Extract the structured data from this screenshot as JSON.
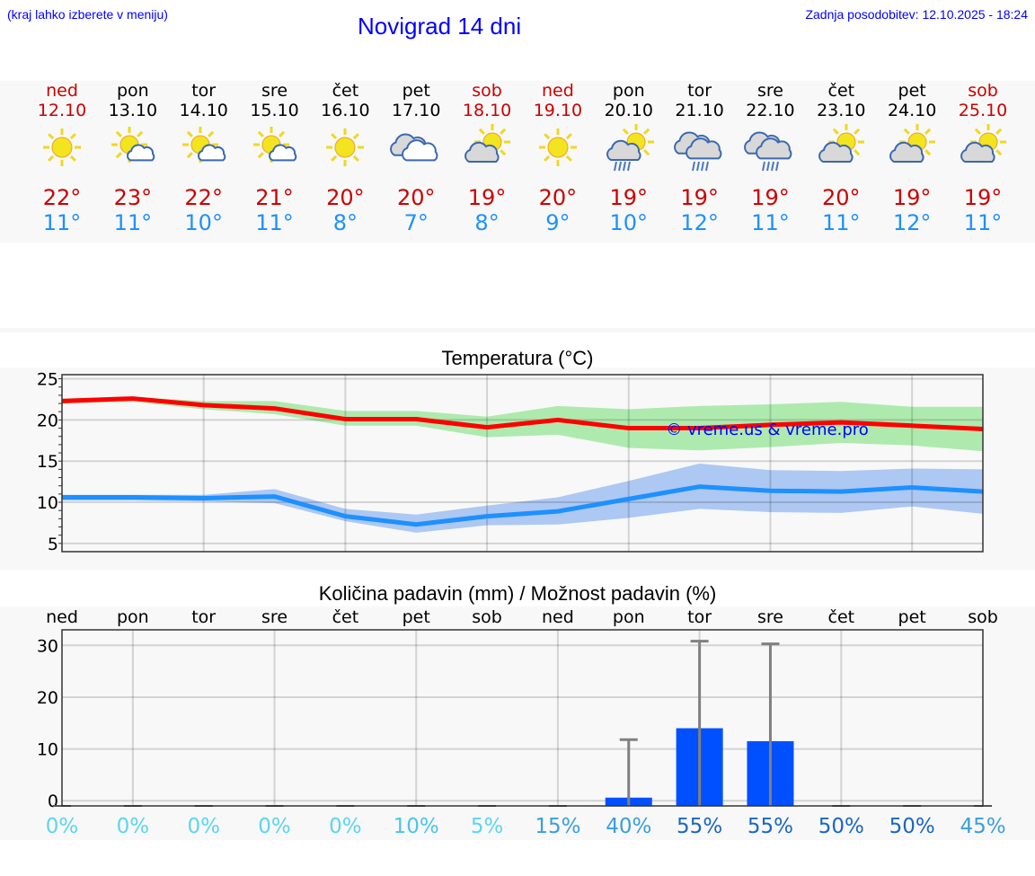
{
  "header": {
    "hint": "(kraj lahko izberete v meniju)",
    "title": "Novigrad 14 dni",
    "updated": "Zadnja posodobitev: 12.10.2025 - 18:24"
  },
  "days": [
    {
      "name": "ned",
      "date": "12.10",
      "weekend": true,
      "icon": "sun",
      "max": "22°",
      "min": "11°"
    },
    {
      "name": "pon",
      "date": "13.10",
      "weekend": false,
      "icon": "sun-small-cloud",
      "max": "23°",
      "min": "11°"
    },
    {
      "name": "tor",
      "date": "14.10",
      "weekend": false,
      "icon": "sun-small-cloud",
      "max": "22°",
      "min": "10°"
    },
    {
      "name": "sre",
      "date": "15.10",
      "weekend": false,
      "icon": "sun-small-cloud",
      "max": "21°",
      "min": "11°"
    },
    {
      "name": "čet",
      "date": "16.10",
      "weekend": false,
      "icon": "sun",
      "max": "20°",
      "min": "8°"
    },
    {
      "name": "pet",
      "date": "17.10",
      "weekend": false,
      "icon": "cloudy",
      "max": "20°",
      "min": "7°"
    },
    {
      "name": "sob",
      "date": "18.10",
      "weekend": true,
      "icon": "partly-cloudy",
      "max": "19°",
      "min": "8°"
    },
    {
      "name": "ned",
      "date": "19.10",
      "weekend": true,
      "icon": "sun",
      "max": "20°",
      "min": "9°"
    },
    {
      "name": "pon",
      "date": "20.10",
      "weekend": false,
      "icon": "sun-rain",
      "max": "19°",
      "min": "10°"
    },
    {
      "name": "tor",
      "date": "21.10",
      "weekend": false,
      "icon": "rain",
      "max": "19°",
      "min": "12°"
    },
    {
      "name": "sre",
      "date": "22.10",
      "weekend": false,
      "icon": "rain",
      "max": "19°",
      "min": "11°"
    },
    {
      "name": "čet",
      "date": "23.10",
      "weekend": false,
      "icon": "partly-cloudy",
      "max": "20°",
      "min": "11°"
    },
    {
      "name": "pet",
      "date": "24.10",
      "weekend": false,
      "icon": "partly-cloudy",
      "max": "19°",
      "min": "12°"
    },
    {
      "name": "sob",
      "date": "25.10",
      "weekend": true,
      "icon": "partly-cloudy",
      "max": "19°",
      "min": "11°"
    }
  ],
  "colors": {
    "weekend": "#cc0000",
    "max": "#ff0000",
    "min": "#1e90ff",
    "max_band": "#aeeaae",
    "min_band": "#adc8f2",
    "bar": "#0050ff",
    "whisker": "#808080"
  },
  "chart_data": [
    {
      "type": "line",
      "title": "Temperatura (°C)",
      "ylim": [
        4,
        25.5
      ],
      "yticks": [
        5,
        10,
        15,
        20,
        25
      ],
      "grid": true,
      "watermark": "© vreme.us & vreme.pro",
      "series": [
        {
          "name": "max",
          "values": [
            22.3,
            22.6,
            21.8,
            21.4,
            20.1,
            20.1,
            19.1,
            20.0,
            19.0,
            19.0,
            19.4,
            19.7,
            19.3,
            18.9
          ],
          "upper": [
            22.6,
            22.8,
            22.3,
            22.3,
            21.1,
            21.1,
            20.4,
            21.7,
            21.3,
            21.7,
            21.9,
            22.2,
            21.6,
            21.6
          ],
          "lower": [
            22.0,
            22.2,
            21.3,
            20.7,
            19.3,
            19.3,
            17.9,
            18.2,
            16.6,
            16.3,
            16.7,
            17.2,
            16.9,
            16.2
          ]
        },
        {
          "name": "min",
          "values": [
            10.6,
            10.6,
            10.5,
            10.7,
            8.3,
            7.3,
            8.3,
            8.9,
            10.4,
            11.9,
            11.4,
            11.3,
            11.8,
            11.3
          ],
          "upper": [
            10.9,
            10.9,
            10.9,
            11.6,
            9.2,
            8.5,
            9.6,
            10.6,
            12.6,
            14.7,
            13.9,
            13.8,
            14.1,
            14.0
          ],
          "lower": [
            10.2,
            10.2,
            10.1,
            9.9,
            7.7,
            6.3,
            7.2,
            7.3,
            8.1,
            9.2,
            8.8,
            8.7,
            9.5,
            8.6
          ]
        }
      ]
    },
    {
      "type": "bar",
      "title": "Količina padavin (mm) / Možnost padavin (%)",
      "ylim": [
        -1,
        33
      ],
      "yticks": [
        0,
        10,
        20,
        30
      ],
      "grid": true,
      "categories": [
        "ned",
        "pon",
        "tor",
        "sre",
        "čet",
        "pet",
        "sob",
        "ned",
        "pon",
        "tor",
        "sre",
        "čet",
        "pet",
        "sob"
      ],
      "values": [
        0,
        0,
        0,
        0,
        0,
        0,
        0,
        0,
        0.6,
        14,
        11.5,
        0,
        0,
        0
      ],
      "whisker_max": [
        0,
        0,
        0,
        0,
        0,
        0,
        0,
        0,
        11.8,
        30.8,
        30.3,
        0,
        0,
        0
      ],
      "probability": [
        "0%",
        "0%",
        "0%",
        "0%",
        "0%",
        "10%",
        "5%",
        "15%",
        "40%",
        "55%",
        "55%",
        "50%",
        "50%",
        "45%"
      ],
      "probability_colors": [
        "#5ad6ee",
        "#5ad6ee",
        "#5ad6ee",
        "#5ad6ee",
        "#5ad6ee",
        "#4cc4ea",
        "#5ad6ee",
        "#3a9ede",
        "#3a9ede",
        "#1a66c2",
        "#1a66c2",
        "#1a66c2",
        "#1a66c2",
        "#3a9ede"
      ]
    }
  ]
}
